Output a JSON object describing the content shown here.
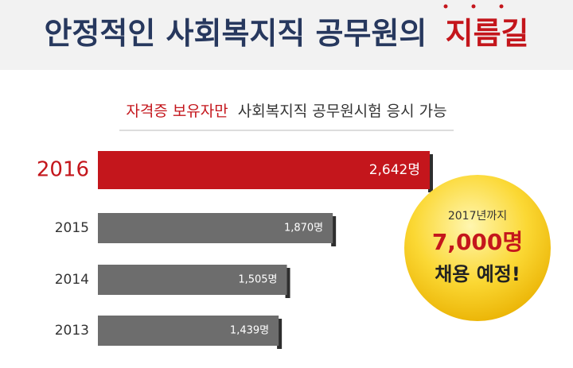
{
  "chart_data": {
    "type": "bar",
    "orientation": "horizontal",
    "title": {
      "main": "안정적인 사회복지직 공무원의",
      "highlight": "지름길"
    },
    "subtitle": {
      "highlight": "자격증 보유자만",
      "main": "사회복지직 공무원시험 응시 가능"
    },
    "categories": [
      "2016",
      "2015",
      "2014",
      "2013"
    ],
    "values": [
      2642,
      1870,
      1505,
      1439
    ],
    "value_labels": [
      "2,642명",
      "1,870명",
      "1,505명",
      "1,439명"
    ],
    "colors": [
      "#c4161c",
      "#6d6d6d",
      "#6d6d6d",
      "#6d6d6d"
    ],
    "badge": {
      "line1": "2017년까지",
      "line2": "7,000명",
      "line3": "채용 예정!"
    }
  }
}
